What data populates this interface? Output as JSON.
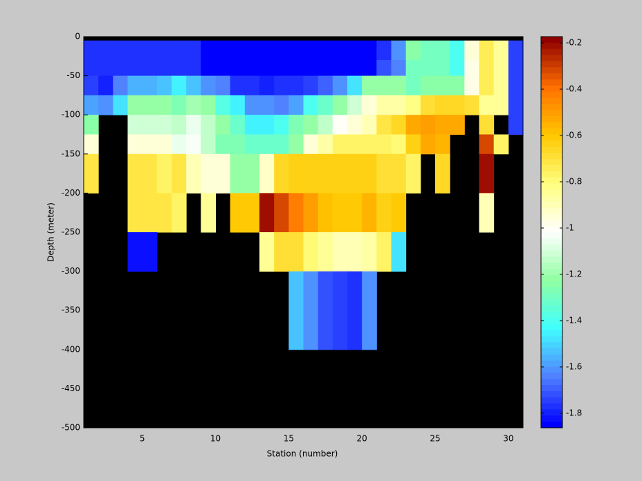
{
  "chart_data": {
    "type": "heatmap",
    "xlabel": "Station (number)",
    "ylabel": "Depth (meter)",
    "x": [
      1,
      2,
      3,
      4,
      5,
      6,
      7,
      8,
      9,
      10,
      11,
      12,
      13,
      14,
      15,
      16,
      17,
      18,
      19,
      20,
      21,
      22,
      23,
      24,
      25,
      26,
      27,
      28,
      29,
      30,
      31
    ],
    "y": [
      0,
      -5,
      -30,
      -50,
      -75,
      -100,
      -125,
      -150,
      -200,
      -250,
      -300,
      -400
    ],
    "z": [
      [
        null,
        null,
        null,
        null,
        null,
        null,
        null,
        null,
        null,
        null,
        null,
        null,
        null,
        null,
        null,
        null,
        null,
        null,
        null,
        null,
        null,
        null,
        null,
        null,
        null,
        null,
        null,
        null,
        null,
        null
      ],
      [
        -1.78,
        -1.78,
        -1.78,
        -1.78,
        -1.78,
        -1.78,
        -1.78,
        -1.78,
        -1.84,
        -1.84,
        -1.84,
        -1.84,
        -1.84,
        -1.84,
        -1.84,
        -1.84,
        -1.84,
        -1.84,
        -1.84,
        -1.84,
        -1.78,
        -1.6,
        -1.25,
        -1.3,
        -1.3,
        -1.4,
        -0.95,
        -0.75,
        -0.85,
        -1.75
      ],
      [
        -1.78,
        -1.78,
        -1.78,
        -1.78,
        -1.78,
        -1.78,
        -1.78,
        -1.78,
        -1.84,
        -1.84,
        -1.84,
        -1.84,
        -1.84,
        -1.84,
        -1.84,
        -1.84,
        -1.84,
        -1.84,
        -1.84,
        -1.84,
        -1.72,
        -1.65,
        -1.3,
        -1.3,
        -1.3,
        -1.4,
        -0.97,
        -0.75,
        -0.85,
        -1.75
      ],
      [
        -1.75,
        -1.8,
        -1.65,
        -1.55,
        -1.55,
        -1.52,
        -1.45,
        -1.52,
        -1.62,
        -1.65,
        -1.78,
        -1.78,
        -1.8,
        -1.78,
        -1.78,
        -1.75,
        -1.7,
        -1.62,
        -1.48,
        -1.22,
        -1.22,
        -1.22,
        -1.3,
        -1.25,
        -1.25,
        -1.25,
        -0.98,
        -0.75,
        -0.85,
        -1.75
      ],
      [
        -1.58,
        -1.62,
        -1.47,
        -1.22,
        -1.22,
        -1.22,
        -1.27,
        -1.18,
        -1.22,
        -1.38,
        -1.45,
        -1.62,
        -1.62,
        -1.63,
        -1.58,
        -1.4,
        -1.33,
        -1.22,
        -1.12,
        -0.95,
        -0.87,
        -0.87,
        -0.82,
        -0.7,
        -0.66,
        -0.66,
        -0.68,
        -0.85,
        -0.85,
        -1.75
      ],
      [
        -1.25,
        null,
        null,
        -1.1,
        -1.1,
        -1.1,
        -1.13,
        -1.07,
        -1.13,
        -1.22,
        -1.32,
        -1.45,
        -1.45,
        -1.4,
        -1.28,
        -1.22,
        -1.15,
        -1.0,
        -0.95,
        -0.9,
        -0.72,
        -0.66,
        -0.52,
        -0.5,
        -0.53,
        -0.53,
        null,
        -0.68,
        null,
        -1.75
      ],
      [
        -0.95,
        null,
        null,
        -0.95,
        -0.95,
        -0.95,
        -1.05,
        -1.02,
        -1.13,
        -1.27,
        -1.27,
        -1.33,
        -1.33,
        -1.33,
        -1.22,
        -0.95,
        -0.87,
        -0.78,
        -0.78,
        -0.78,
        -0.78,
        -0.8,
        -0.64,
        -0.52,
        -0.56,
        null,
        null,
        -0.33,
        -0.78,
        null
      ],
      [
        -0.72,
        null,
        null,
        -0.72,
        -0.72,
        -0.77,
        -0.72,
        -0.9,
        -0.95,
        -0.95,
        -1.22,
        -1.22,
        -0.93,
        -0.67,
        -0.64,
        -0.64,
        -0.64,
        -0.64,
        -0.64,
        -0.64,
        -0.7,
        -0.7,
        -0.77,
        null,
        -0.67,
        null,
        null,
        -0.2,
        null,
        null
      ],
      [
        null,
        null,
        null,
        -0.72,
        -0.72,
        -0.72,
        -0.77,
        null,
        -0.85,
        null,
        -0.6,
        -0.6,
        -0.2,
        -0.33,
        -0.42,
        -0.5,
        -0.58,
        -0.6,
        -0.6,
        -0.56,
        -0.64,
        -0.62,
        null,
        null,
        null,
        null,
        null,
        -0.9,
        null,
        null
      ],
      [
        null,
        null,
        null,
        -1.82,
        -1.82,
        null,
        null,
        null,
        null,
        null,
        null,
        null,
        -0.85,
        -0.7,
        -0.7,
        -0.8,
        -0.85,
        -0.9,
        -0.9,
        -0.88,
        -0.77,
        -1.48,
        null,
        null,
        null,
        null,
        null,
        null,
        null,
        null
      ],
      [
        null,
        null,
        null,
        null,
        null,
        null,
        null,
        null,
        null,
        null,
        null,
        null,
        null,
        null,
        -1.52,
        -1.62,
        -1.73,
        -1.75,
        -1.78,
        -1.62,
        null,
        null,
        null,
        null,
        null,
        null,
        null,
        null,
        null,
        null
      ]
    ],
    "xlim": [
      1,
      31
    ],
    "ylim": [
      -500,
      0
    ],
    "xticks": [
      5,
      10,
      15,
      20,
      25,
      30
    ],
    "yticks": [
      0,
      -50,
      -100,
      -150,
      -200,
      -250,
      -300,
      -350,
      -400,
      -450,
      -500
    ],
    "clim": [
      -1.863,
      -0.173
    ],
    "cticks": [
      -0.2,
      -0.4,
      -0.6,
      -0.8,
      -1,
      -1.2,
      -1.4,
      -1.6,
      -1.8
    ],
    "colormap": [
      "#0000ff",
      "#5080ff",
      "#40ffff",
      "#90ffa0",
      "#ffffff",
      "#ffff80",
      "#ffc800",
      "#ff7000",
      "#900000"
    ],
    "levels": 64,
    "background": "#000000"
  }
}
